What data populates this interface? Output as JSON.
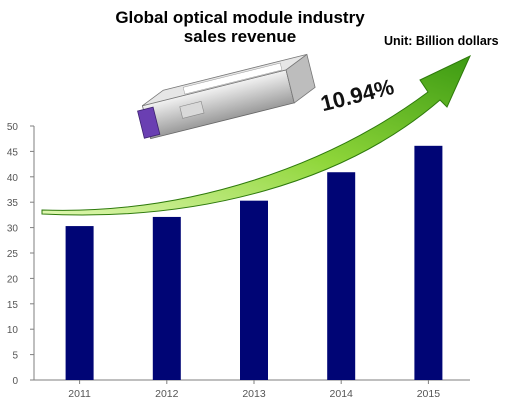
{
  "chart_data": {
    "type": "bar",
    "title_lines": [
      "Global optical module industry",
      "sales revenue"
    ],
    "unit": "Unit: Billion dollars",
    "annotation": "10.94%",
    "categories": [
      "2011",
      "2012",
      "2013",
      "2014",
      "2015"
    ],
    "values": [
      30.3,
      32.1,
      35.3,
      40.9,
      46.1
    ],
    "ylim": [
      0,
      50
    ],
    "yticks": [
      "0",
      "5",
      "10",
      "15",
      "20",
      "25",
      "30",
      "35",
      "40",
      "45",
      "50"
    ],
    "grid": false,
    "legend": "none",
    "colors": {
      "bar": "#000575",
      "axis": "#7f7f7f",
      "arrow_light": "#b6ee5c",
      "arrow_dark": "#3f8f12"
    }
  }
}
